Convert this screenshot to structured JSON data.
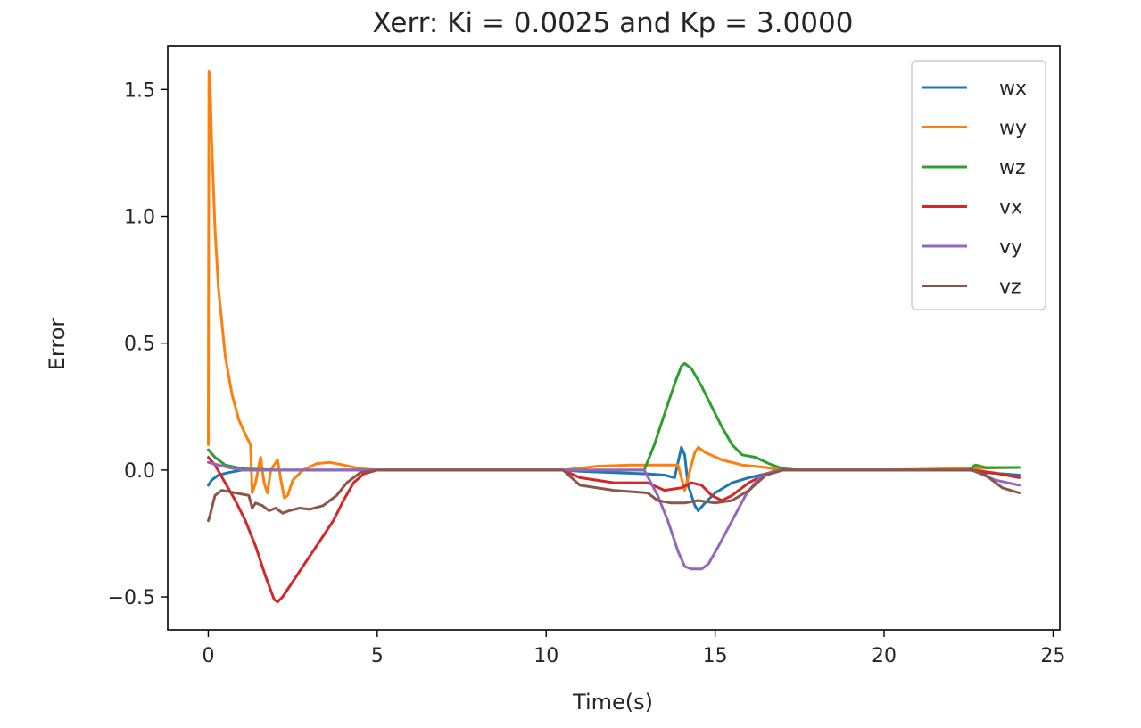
{
  "chart_data": {
    "type": "line",
    "title": "Xerr: Ki = 0.0025 and Kp = 3.0000",
    "xlabel": "Time(s)",
    "ylabel": "Error",
    "xlim": [
      -1.2,
      25.2
    ],
    "ylim": [
      -0.63,
      1.67
    ],
    "xticks": [
      0,
      5,
      10,
      15,
      20,
      25
    ],
    "xtick_labels": [
      "0",
      "5",
      "10",
      "15",
      "20",
      "25"
    ],
    "yticks": [
      -0.5,
      0.0,
      0.5,
      1.0,
      1.5
    ],
    "ytick_labels": [
      "−0.5",
      "0.0",
      "0.5",
      "1.0",
      "1.5"
    ],
    "grid": false,
    "legend": "top-right",
    "series": [
      {
        "name": "wx",
        "color": "#1f77b4",
        "points": [
          [
            0,
            -0.06
          ],
          [
            0.1,
            -0.04
          ],
          [
            0.3,
            -0.02
          ],
          [
            0.6,
            -0.01
          ],
          [
            1,
            0
          ],
          [
            2,
            0
          ],
          [
            3,
            0
          ],
          [
            4,
            0
          ],
          [
            5,
            0
          ],
          [
            8,
            0
          ],
          [
            10.5,
            0
          ],
          [
            11,
            -0.005
          ],
          [
            12,
            -0.01
          ],
          [
            13,
            -0.015
          ],
          [
            13.5,
            -0.02
          ],
          [
            13.8,
            -0.03
          ],
          [
            14.0,
            0.09
          ],
          [
            14.1,
            0.06
          ],
          [
            14.2,
            -0.06
          ],
          [
            14.4,
            -0.14
          ],
          [
            14.5,
            -0.16
          ],
          [
            14.7,
            -0.13
          ],
          [
            15.0,
            -0.09
          ],
          [
            15.5,
            -0.05
          ],
          [
            16.0,
            -0.03
          ],
          [
            16.5,
            -0.015
          ],
          [
            17,
            0
          ],
          [
            20,
            0
          ],
          [
            22.5,
            0
          ],
          [
            23,
            -0.01
          ],
          [
            24,
            -0.02
          ]
        ]
      },
      {
        "name": "wy",
        "color": "#ff7f0e",
        "points": [
          [
            0,
            0.1
          ],
          [
            0.02,
            1.57
          ],
          [
            0.05,
            1.55
          ],
          [
            0.1,
            1.3
          ],
          [
            0.2,
            0.95
          ],
          [
            0.3,
            0.72
          ],
          [
            0.5,
            0.45
          ],
          [
            0.7,
            0.3
          ],
          [
            0.9,
            0.2
          ],
          [
            1.1,
            0.14
          ],
          [
            1.25,
            0.1
          ],
          [
            1.3,
            -0.09
          ],
          [
            1.4,
            -0.05
          ],
          [
            1.5,
            0.02
          ],
          [
            1.55,
            0.05
          ],
          [
            1.65,
            -0.05
          ],
          [
            1.75,
            -0.09
          ],
          [
            1.85,
            0
          ],
          [
            1.95,
            0.02
          ],
          [
            2.05,
            0.04
          ],
          [
            2.15,
            -0.04
          ],
          [
            2.25,
            -0.11
          ],
          [
            2.35,
            -0.1
          ],
          [
            2.5,
            -0.04
          ],
          [
            2.8,
            0
          ],
          [
            3.2,
            0.025
          ],
          [
            3.6,
            0.03
          ],
          [
            4.0,
            0.02
          ],
          [
            4.5,
            0.005
          ],
          [
            5,
            0
          ],
          [
            8,
            0
          ],
          [
            10.5,
            0
          ],
          [
            11.5,
            0.015
          ],
          [
            12.5,
            0.02
          ],
          [
            13.5,
            0.02
          ],
          [
            13.9,
            0.02
          ],
          [
            14.1,
            -0.08
          ],
          [
            14.2,
            -0.03
          ],
          [
            14.4,
            0.07
          ],
          [
            14.5,
            0.09
          ],
          [
            14.7,
            0.07
          ],
          [
            15.2,
            0.04
          ],
          [
            15.8,
            0.02
          ],
          [
            16.5,
            0.01
          ],
          [
            17,
            0
          ],
          [
            20,
            0
          ],
          [
            24,
            0.01
          ]
        ]
      },
      {
        "name": "wz",
        "color": "#2ca02c",
        "points": [
          [
            0,
            0.08
          ],
          [
            0.2,
            0.05
          ],
          [
            0.5,
            0.02
          ],
          [
            1,
            0.005
          ],
          [
            2,
            0
          ],
          [
            5,
            0
          ],
          [
            10,
            0
          ],
          [
            12.9,
            0
          ],
          [
            13.2,
            0.1
          ],
          [
            13.5,
            0.22
          ],
          [
            13.8,
            0.34
          ],
          [
            14.0,
            0.41
          ],
          [
            14.1,
            0.42
          ],
          [
            14.3,
            0.4
          ],
          [
            14.6,
            0.33
          ],
          [
            14.9,
            0.25
          ],
          [
            15.2,
            0.17
          ],
          [
            15.5,
            0.1
          ],
          [
            15.8,
            0.06
          ],
          [
            16.2,
            0.05
          ],
          [
            16.6,
            0.025
          ],
          [
            17,
            0.005
          ],
          [
            17.5,
            0
          ],
          [
            20,
            0
          ],
          [
            22.5,
            0
          ],
          [
            22.7,
            0.02
          ],
          [
            23,
            0.01
          ],
          [
            24,
            0.01
          ]
        ]
      },
      {
        "name": "vx",
        "color": "#d62728",
        "points": [
          [
            0,
            0.05
          ],
          [
            0.2,
            0.02
          ],
          [
            0.5,
            -0.05
          ],
          [
            0.8,
            -0.12
          ],
          [
            1.1,
            -0.2
          ],
          [
            1.4,
            -0.3
          ],
          [
            1.7,
            -0.42
          ],
          [
            1.95,
            -0.51
          ],
          [
            2.05,
            -0.52
          ],
          [
            2.2,
            -0.5
          ],
          [
            2.5,
            -0.44
          ],
          [
            2.9,
            -0.36
          ],
          [
            3.3,
            -0.28
          ],
          [
            3.7,
            -0.2
          ],
          [
            4.0,
            -0.12
          ],
          [
            4.3,
            -0.05
          ],
          [
            4.6,
            -0.015
          ],
          [
            5,
            0
          ],
          [
            8,
            0
          ],
          [
            10.5,
            0
          ],
          [
            11,
            -0.03
          ],
          [
            12,
            -0.05
          ],
          [
            13,
            -0.05
          ],
          [
            13.5,
            -0.08
          ],
          [
            14.0,
            -0.07
          ],
          [
            14.3,
            -0.05
          ],
          [
            14.6,
            -0.06
          ],
          [
            14.9,
            -0.1
          ],
          [
            15.2,
            -0.12
          ],
          [
            15.5,
            -0.1
          ],
          [
            16,
            -0.05
          ],
          [
            16.5,
            -0.015
          ],
          [
            17,
            0
          ],
          [
            20,
            0
          ],
          [
            22.6,
            0
          ],
          [
            23.2,
            -0.01
          ],
          [
            24,
            -0.03
          ]
        ]
      },
      {
        "name": "vy",
        "color": "#9467bd",
        "points": [
          [
            0,
            0.03
          ],
          [
            0.3,
            0.02
          ],
          [
            0.6,
            0.01
          ],
          [
            1,
            0
          ],
          [
            5,
            0
          ],
          [
            10,
            0
          ],
          [
            12.9,
            0
          ],
          [
            13.3,
            -0.1
          ],
          [
            13.6,
            -0.2
          ],
          [
            13.9,
            -0.32
          ],
          [
            14.1,
            -0.38
          ],
          [
            14.3,
            -0.39
          ],
          [
            14.6,
            -0.39
          ],
          [
            14.8,
            -0.37
          ],
          [
            15.1,
            -0.3
          ],
          [
            15.5,
            -0.2
          ],
          [
            15.9,
            -0.1
          ],
          [
            16.3,
            -0.03
          ],
          [
            16.7,
            -0.005
          ],
          [
            17,
            0
          ],
          [
            20,
            0
          ],
          [
            22.6,
            0
          ],
          [
            23.3,
            -0.04
          ],
          [
            24,
            -0.06
          ]
        ]
      },
      {
        "name": "vz",
        "color": "#8c564b",
        "points": [
          [
            0,
            -0.2
          ],
          [
            0.05,
            -0.18
          ],
          [
            0.2,
            -0.1
          ],
          [
            0.4,
            -0.08
          ],
          [
            0.8,
            -0.09
          ],
          [
            1.2,
            -0.1
          ],
          [
            1.3,
            -0.15
          ],
          [
            1.4,
            -0.13
          ],
          [
            1.6,
            -0.14
          ],
          [
            1.8,
            -0.16
          ],
          [
            2.0,
            -0.15
          ],
          [
            2.2,
            -0.17
          ],
          [
            2.4,
            -0.16
          ],
          [
            2.7,
            -0.15
          ],
          [
            3.0,
            -0.155
          ],
          [
            3.4,
            -0.14
          ],
          [
            3.8,
            -0.1
          ],
          [
            4.1,
            -0.05
          ],
          [
            4.5,
            -0.01
          ],
          [
            5,
            0
          ],
          [
            8,
            0
          ],
          [
            10.5,
            0
          ],
          [
            11,
            -0.06
          ],
          [
            12,
            -0.08
          ],
          [
            13,
            -0.09
          ],
          [
            13.3,
            -0.12
          ],
          [
            13.7,
            -0.13
          ],
          [
            14.1,
            -0.13
          ],
          [
            14.5,
            -0.12
          ],
          [
            15,
            -0.13
          ],
          [
            15.5,
            -0.12
          ],
          [
            16,
            -0.08
          ],
          [
            16.5,
            -0.02
          ],
          [
            17,
            0
          ],
          [
            20,
            0
          ],
          [
            22.6,
            0
          ],
          [
            23,
            -0.02
          ],
          [
            23.5,
            -0.07
          ],
          [
            24,
            -0.09
          ]
        ]
      }
    ]
  }
}
